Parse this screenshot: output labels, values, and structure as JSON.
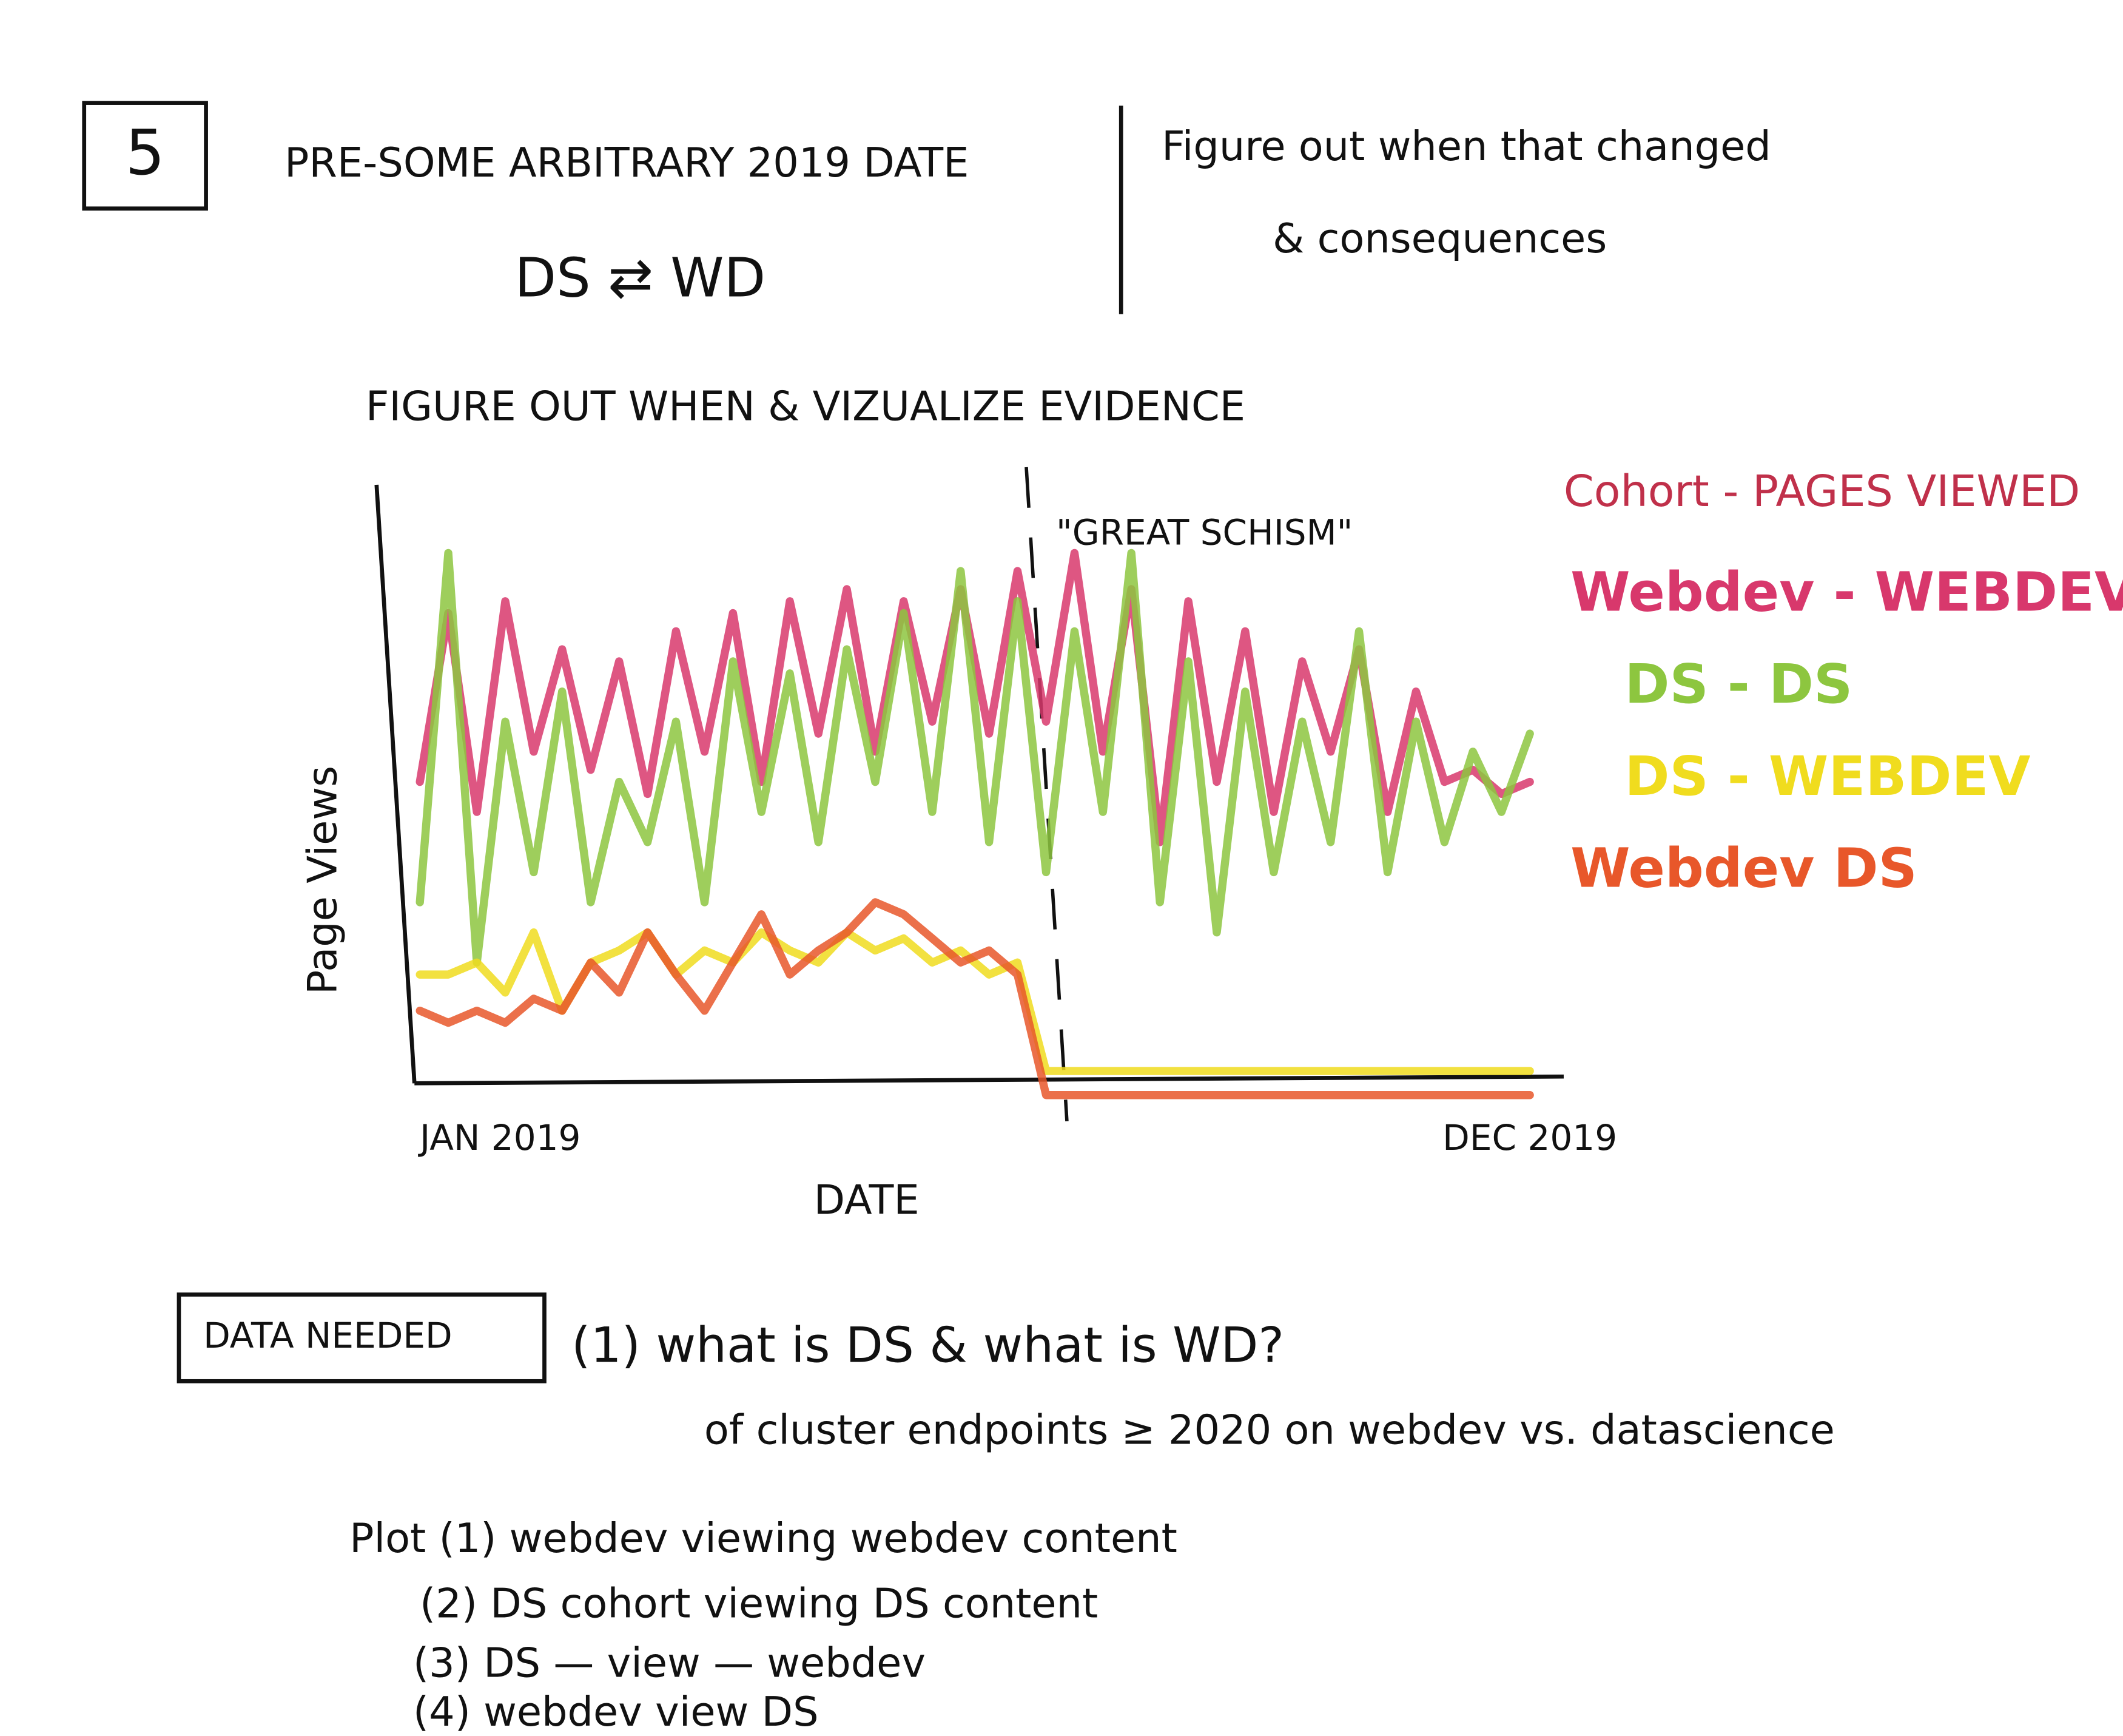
{
  "header": {
    "number": "5",
    "title": "PRE-SOME ARBITRARY 2019 DATE",
    "subtitle": "DS ⇄ WD"
  },
  "aside": {
    "lines": [
      "Figure out when that changed",
      "& consequences"
    ]
  },
  "chart_data": {
    "type": "line",
    "title": "FIGURE OUT WHEN & VIZUALIZE EVIDENCE",
    "ylabel": "Page Views",
    "xlabel": "DATE",
    "annotation": "\"GREAT SCHISM\"",
    "legend_title": "Cohort - PAGES VIEWED",
    "legend": "right",
    "categories": [
      "JAN 2019",
      null,
      null,
      null,
      null,
      null,
      null,
      null,
      null,
      null,
      null,
      null,
      null,
      null,
      null,
      null,
      null,
      null,
      null,
      null,
      null,
      null,
      null,
      null,
      null,
      null,
      null,
      null,
      null,
      null,
      null,
      null,
      null,
      null,
      null,
      null,
      null,
      null,
      null,
      "DEC 2019"
    ],
    "ylim": [
      -5,
      100
    ],
    "series": [
      {
        "name": "Webdev - WEBDEV",
        "color": "#d8386c",
        "values": [
          50,
          78,
          45,
          80,
          55,
          72,
          52,
          70,
          48,
          75,
          55,
          78,
          50,
          80,
          58,
          82,
          55,
          80,
          60,
          82,
          58,
          85,
          60,
          88,
          55,
          82,
          40,
          80,
          50,
          75,
          45,
          70,
          55,
          72,
          45,
          65,
          50,
          52,
          48,
          50
        ]
      },
      {
        "name": "DS - DS",
        "color": "#8dc63f",
        "values": [
          30,
          88,
          20,
          60,
          35,
          65,
          30,
          50,
          40,
          60,
          30,
          70,
          45,
          68,
          40,
          72,
          50,
          78,
          45,
          85,
          40,
          80,
          35,
          75,
          45,
          88,
          30,
          70,
          25,
          65,
          35,
          60,
          40,
          75,
          35,
          60,
          40,
          55,
          45,
          58
        ]
      },
      {
        "name": "DS - WEBDEV",
        "color": "#f0dc1e",
        "values": [
          18,
          18,
          20,
          15,
          25,
          12,
          20,
          22,
          25,
          18,
          22,
          20,
          25,
          22,
          20,
          25,
          22,
          24,
          20,
          22,
          18,
          20,
          2,
          2,
          2,
          2,
          2,
          2,
          2,
          2,
          2,
          2,
          2,
          2,
          2,
          2,
          2,
          2,
          2,
          2
        ]
      },
      {
        "name": "Webdev DS",
        "color": "#e8572a",
        "values": [
          12,
          10,
          12,
          10,
          14,
          12,
          20,
          15,
          25,
          18,
          12,
          20,
          28,
          18,
          22,
          25,
          30,
          28,
          24,
          20,
          22,
          18,
          -2,
          -2,
          -2,
          -2,
          -2,
          -2,
          -2,
          -2,
          -2,
          -2,
          -2,
          -2,
          -2,
          -2,
          -2,
          -2,
          -2,
          -2
        ]
      }
    ]
  },
  "data_needed": {
    "label": "DATA NEEDED",
    "lines": [
      "(1) what is DS & what is WD?",
      "of cluster endpoints ≥ 2020 on webdev vs. datascience"
    ]
  },
  "plot_list": {
    "lines": [
      "Plot (1) webdev viewing webdev content",
      "(2) DS cohort viewing DS content",
      "(3) DS — view — webdev",
      "(4) webdev view DS"
    ]
  }
}
